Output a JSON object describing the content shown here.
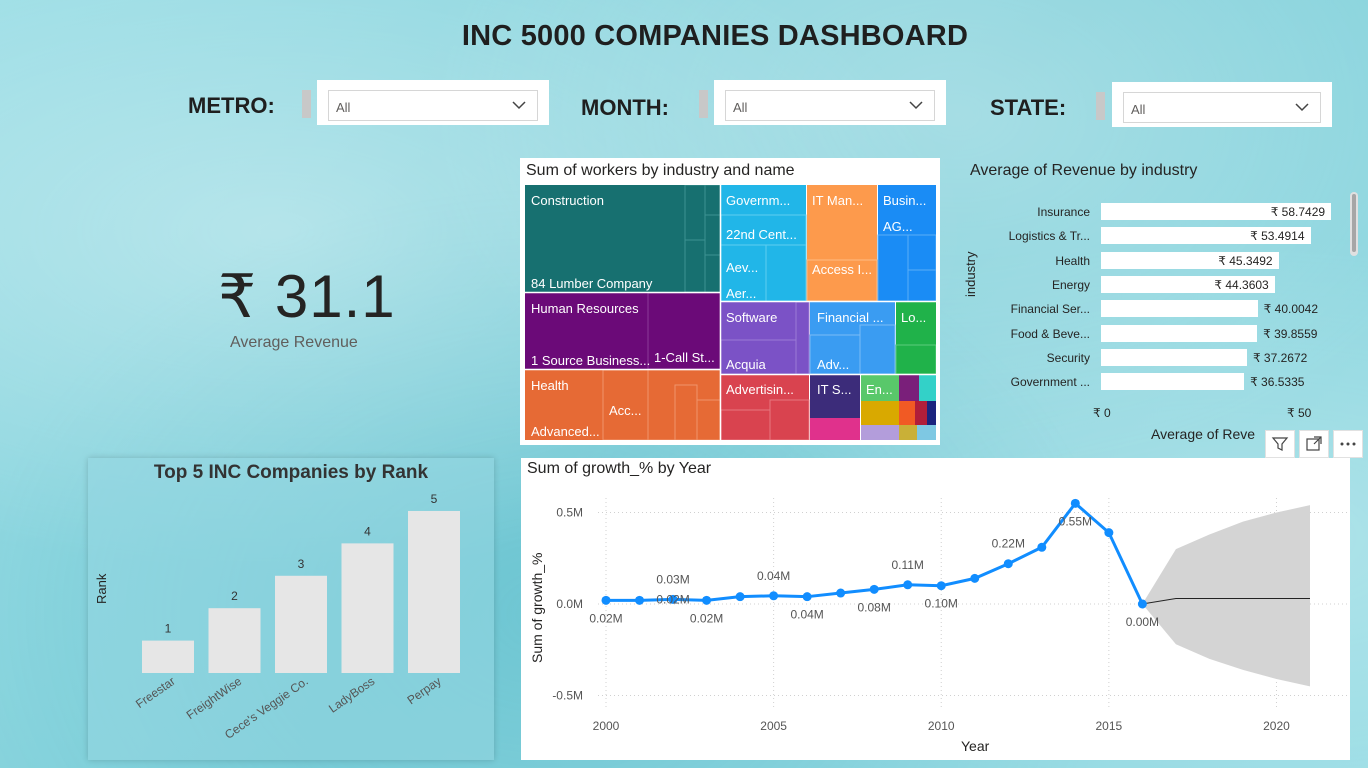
{
  "title": "INC 5000 COMPANIES DASHBOARD",
  "filters": [
    {
      "label": "METRO:",
      "value": "All"
    },
    {
      "label": "MONTH:",
      "value": "All"
    },
    {
      "label": "STATE:",
      "value": "All"
    }
  ],
  "kpi": {
    "value": "₹ 31.1",
    "label": "Average Revenue"
  },
  "treemap": {
    "title": "Sum of workers by industry and name",
    "labels": {
      "construction": "Construction",
      "lumber": "84 Lumber Company",
      "government": "Governm...",
      "centre": "22nd Cent...",
      "aev": "Aev...",
      "aer": "Aer...",
      "itman": "IT Man...",
      "access": "Access I...",
      "business": "Busin...",
      "ag": "AG...",
      "hr": "Human Resources",
      "source": "1 Source Business...",
      "call": "1-Call St...",
      "software": "Software",
      "acquia": "Acquia",
      "financial": "Financial ...",
      "adv": "Adv...",
      "lo": "Lo...",
      "health": "Health",
      "acc": "Acc...",
      "advanced": "Advanced...",
      "advertising": "Advertisin...",
      "its": "IT S...",
      "en": "En..."
    }
  },
  "revenue_by_industry": {
    "title": "Average of Revenue by industry",
    "ylabel": "industry",
    "xlabel": "Average of Reve",
    "ticks": [
      "₹ 0",
      "₹ 50"
    ],
    "xmax": 60,
    "rows": [
      {
        "label": "Insurance",
        "value": 58.7429,
        "text": "₹ 58.7429"
      },
      {
        "label": "Logistics & Tr...",
        "value": 53.4914,
        "text": "₹ 53.4914"
      },
      {
        "label": "Health",
        "value": 45.3492,
        "text": "₹ 45.3492"
      },
      {
        "label": "Energy",
        "value": 44.3603,
        "text": "₹ 44.3603"
      },
      {
        "label": "Financial Ser...",
        "value": 40.0042,
        "text": "₹ 40.0042"
      },
      {
        "label": "Food & Beve...",
        "value": 39.8559,
        "text": "₹ 39.8559"
      },
      {
        "label": "Security",
        "value": 37.2672,
        "text": "₹ 37.2672"
      },
      {
        "label": "Government ...",
        "value": 36.5335,
        "text": "₹ 36.5335"
      }
    ]
  },
  "top5": {
    "title": "Top 5 INC Companies by Rank",
    "ylabel": "Rank",
    "ymax": 5.4,
    "bars": [
      {
        "name": "Freestar",
        "value": 1
      },
      {
        "name": "FreightWise",
        "value": 2
      },
      {
        "name": "Cece's Veggie Co.",
        "value": 3
      },
      {
        "name": "LadyBoss",
        "value": 4
      },
      {
        "name": "Perpay",
        "value": 5
      }
    ]
  },
  "chart_data": {
    "type": "line",
    "title": "Sum of growth_% by Year",
    "xlabel": "Year",
    "ylabel": "Sum of growth_%",
    "xlim": [
      2000,
      2021
    ],
    "ylim": [
      -0.5,
      0.5
    ],
    "xticks": [
      2000,
      2005,
      2010,
      2015,
      2020
    ],
    "yticks": [
      {
        "v": 0.5,
        "t": "0.5M"
      },
      {
        "v": 0.0,
        "t": "0.0M"
      },
      {
        "v": -0.5,
        "t": "-0.5M"
      }
    ],
    "series": [
      {
        "x": [
          2000,
          2001,
          2002,
          2003,
          2004,
          2005,
          2006,
          2007,
          2008,
          2009,
          2010,
          2011,
          2012,
          2013,
          2014,
          2015,
          2016
        ],
        "values": [
          0.02,
          0.02,
          0.025,
          0.02,
          0.04,
          0.045,
          0.04,
          0.06,
          0.08,
          0.105,
          0.1,
          0.14,
          0.22,
          0.31,
          0.55,
          0.39,
          0.0
        ]
      }
    ],
    "data_labels": [
      {
        "x": 2000,
        "y": 0.02,
        "text": "0.02M",
        "pos": "below"
      },
      {
        "x": 2002,
        "y": 0.025,
        "text": "0.03M",
        "pos": "above"
      },
      {
        "x": 2002,
        "y": 0.025,
        "text": "0.02M",
        "pos": "mid"
      },
      {
        "x": 2003,
        "y": 0.02,
        "text": "0.02M",
        "pos": "below"
      },
      {
        "x": 2005,
        "y": 0.045,
        "text": "0.04M",
        "pos": "above"
      },
      {
        "x": 2006,
        "y": 0.04,
        "text": "0.04M",
        "pos": "below"
      },
      {
        "x": 2008,
        "y": 0.08,
        "text": "0.08M",
        "pos": "below"
      },
      {
        "x": 2009,
        "y": 0.105,
        "text": "0.11M",
        "pos": "above"
      },
      {
        "x": 2010,
        "y": 0.1,
        "text": "0.10M",
        "pos": "below"
      },
      {
        "x": 2012,
        "y": 0.22,
        "text": "0.22M",
        "pos": "above"
      },
      {
        "x": 2014,
        "y": 0.55,
        "text": "0.55M",
        "pos": "below"
      },
      {
        "x": 2016,
        "y": 0.0,
        "text": "0.00M",
        "pos": "below"
      }
    ],
    "forecast": {
      "x": [
        2016,
        2017,
        2018,
        2019,
        2020,
        2021
      ],
      "values": [
        0.0,
        0.03,
        0.03,
        0.03,
        0.03,
        0.03
      ],
      "upper": [
        0.0,
        0.3,
        0.38,
        0.45,
        0.5,
        0.54
      ],
      "lower": [
        0.0,
        -0.22,
        -0.3,
        -0.36,
        -0.41,
        -0.45
      ]
    }
  },
  "colors": {
    "line": "#118dff",
    "construction": "#177070",
    "government": "#21b6e8",
    "itman": "#fd9a4c",
    "business": "#1a8cf5",
    "hr": "#6b0a78",
    "software": "#7b52c6",
    "financial": "#3a9cf2",
    "lo": "#20b24a",
    "health": "#e66a35",
    "advertising": "#d9434f",
    "its": "#3c2c7a"
  }
}
